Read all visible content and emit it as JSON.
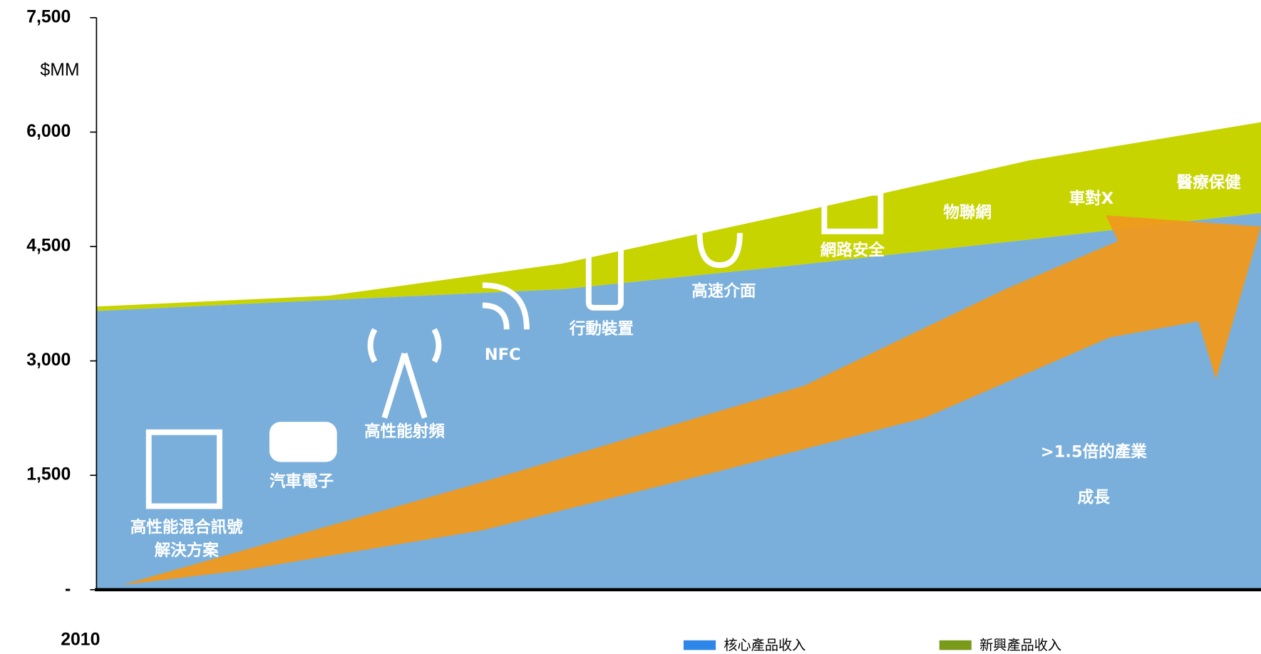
{
  "chart_data": {
    "type": "stacked_area",
    "unit_label": "$MM",
    "categories": [
      "2010",
      null,
      null,
      null,
      null,
      null
    ],
    "series": [
      {
        "name": "核心產品收入",
        "color": "#7aafdb",
        "legend_color": "#2e86e8",
        "values": [
          3655,
          3800,
          3940,
          4255,
          4590,
          4940
        ]
      },
      {
        "name": "新興產品收入",
        "color": "#c8d400",
        "legend_color": "#7a9a1a",
        "values": [
          58,
          55,
          337,
          685,
          1035,
          1190
        ]
      }
    ],
    "ylim": [
      0,
      7500
    ],
    "yticks": [
      {
        "value": 0,
        "label": "-"
      },
      {
        "value": 1500,
        "label": "1,500"
      },
      {
        "value": 3000,
        "label": "3,000"
      },
      {
        "value": 4500,
        "label": "4,500"
      },
      {
        "value": 6000,
        "label": "6,000"
      },
      {
        "value": 7500,
        "label": "7,500"
      }
    ],
    "annotations": [
      "高性能混合訊號",
      "解決方案",
      "汽車電子",
      "高性能射頻",
      "NFC",
      "行動裝置",
      "高速介面",
      "網路安全",
      "物聯網",
      "車對X",
      "醫療保健",
      ">1.5倍的產業",
      "成長"
    ]
  }
}
